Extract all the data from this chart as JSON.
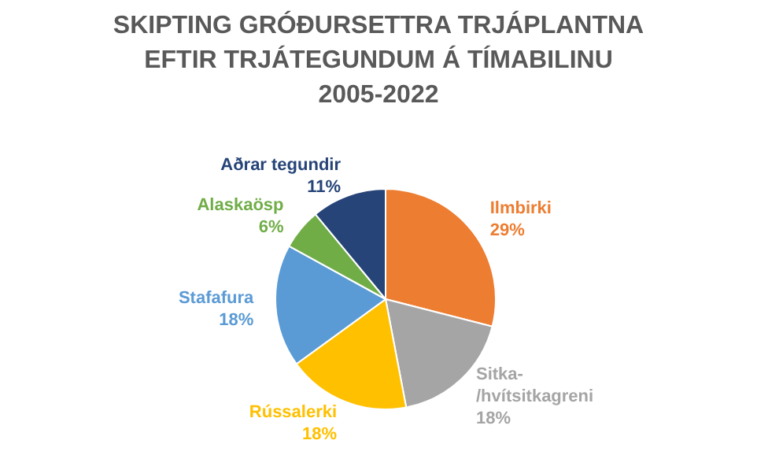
{
  "chart_data": {
    "type": "pie",
    "title": "SKIPTING GRÓÐURSETTRA TRJÁPLANTNA EFTIR TRJÁTEGUNDUM Á TÍMABILINU 2005-2022",
    "categories": [
      "Ilmbirki",
      "Sitka-/hvítsitkagreni",
      "Rússalerki",
      "Stafafura",
      "Alaskaösp",
      "Aðrar tegundir"
    ],
    "values": [
      29,
      18,
      18,
      18,
      6,
      11
    ],
    "value_labels": [
      "29%",
      "18%",
      "18%",
      "18%",
      "6%",
      "11%"
    ],
    "colors": [
      "#ed7d31",
      "#a5a5a5",
      "#ffc000",
      "#5b9bd5",
      "#70ad47",
      "#264478"
    ],
    "legend": false
  }
}
